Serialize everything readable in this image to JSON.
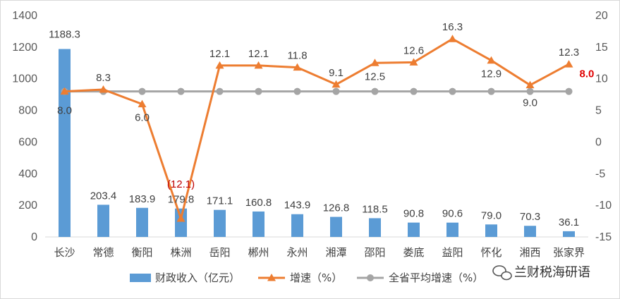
{
  "chart_data": {
    "type": "bar+line",
    "categories": [
      "长沙",
      "常德",
      "衡阳",
      "株洲",
      "岳阳",
      "郴州",
      "永州",
      "湘潭",
      "邵阳",
      "娄底",
      "益阳",
      "怀化",
      "湘西",
      "张家界"
    ],
    "series": [
      {
        "name": "财政收入（亿元）",
        "type": "bar",
        "axis": "left",
        "color": "#5b9bd5",
        "values": [
          1188.3,
          203.4,
          183.9,
          179.8,
          171.1,
          160.8,
          143.9,
          126.8,
          118.5,
          90.8,
          90.6,
          79.0,
          70.3,
          36.1
        ],
        "labels": [
          "1188.3",
          "203.4",
          "183.9",
          "179.8",
          "171.1",
          "160.8",
          "143.9",
          "126.8",
          "118.5",
          "90.8",
          "90.6",
          "79.0",
          "70.3",
          "36.1"
        ]
      },
      {
        "name": "增速（%）",
        "type": "line",
        "axis": "right",
        "color": "#ed7d31",
        "marker": "triangle",
        "values": [
          8.0,
          8.3,
          6.0,
          -12.1,
          12.1,
          12.1,
          11.8,
          9.1,
          12.5,
          12.6,
          16.3,
          12.9,
          9.0,
          12.3
        ],
        "labels": [
          "8.0",
          "8.3",
          "6.0",
          "(12.1)",
          "12.1",
          "12.1",
          "11.8",
          "9.1",
          "12.5",
          "12.6",
          "16.3",
          "12.9",
          "9.0",
          "12.3"
        ]
      },
      {
        "name": "全省平均增速（%）",
        "type": "line",
        "axis": "right",
        "color": "#a5a5a5",
        "marker": "circle",
        "values": [
          8.0,
          8.0,
          8.0,
          8.0,
          8.0,
          8.0,
          8.0,
          8.0,
          8.0,
          8.0,
          8.0,
          8.0,
          8.0,
          8.0
        ],
        "end_label": "8.0"
      }
    ],
    "y_left": {
      "range": [
        0,
        1400
      ],
      "ticks": [
        0,
        200,
        400,
        600,
        800,
        1000,
        1200,
        1400
      ]
    },
    "y_right": {
      "range": [
        -15,
        20
      ],
      "ticks": [
        -15,
        -10,
        -5,
        0,
        5,
        10,
        15,
        20
      ]
    },
    "grid": false,
    "legend": "bottom"
  },
  "watermark": {
    "text": "兰财税海研语",
    "icon": "wechat-icon"
  },
  "colors": {
    "axis": "#d9d9d9",
    "text": "#404040",
    "negative_label": "#c00000",
    "avg_end_label": "#e00000"
  }
}
